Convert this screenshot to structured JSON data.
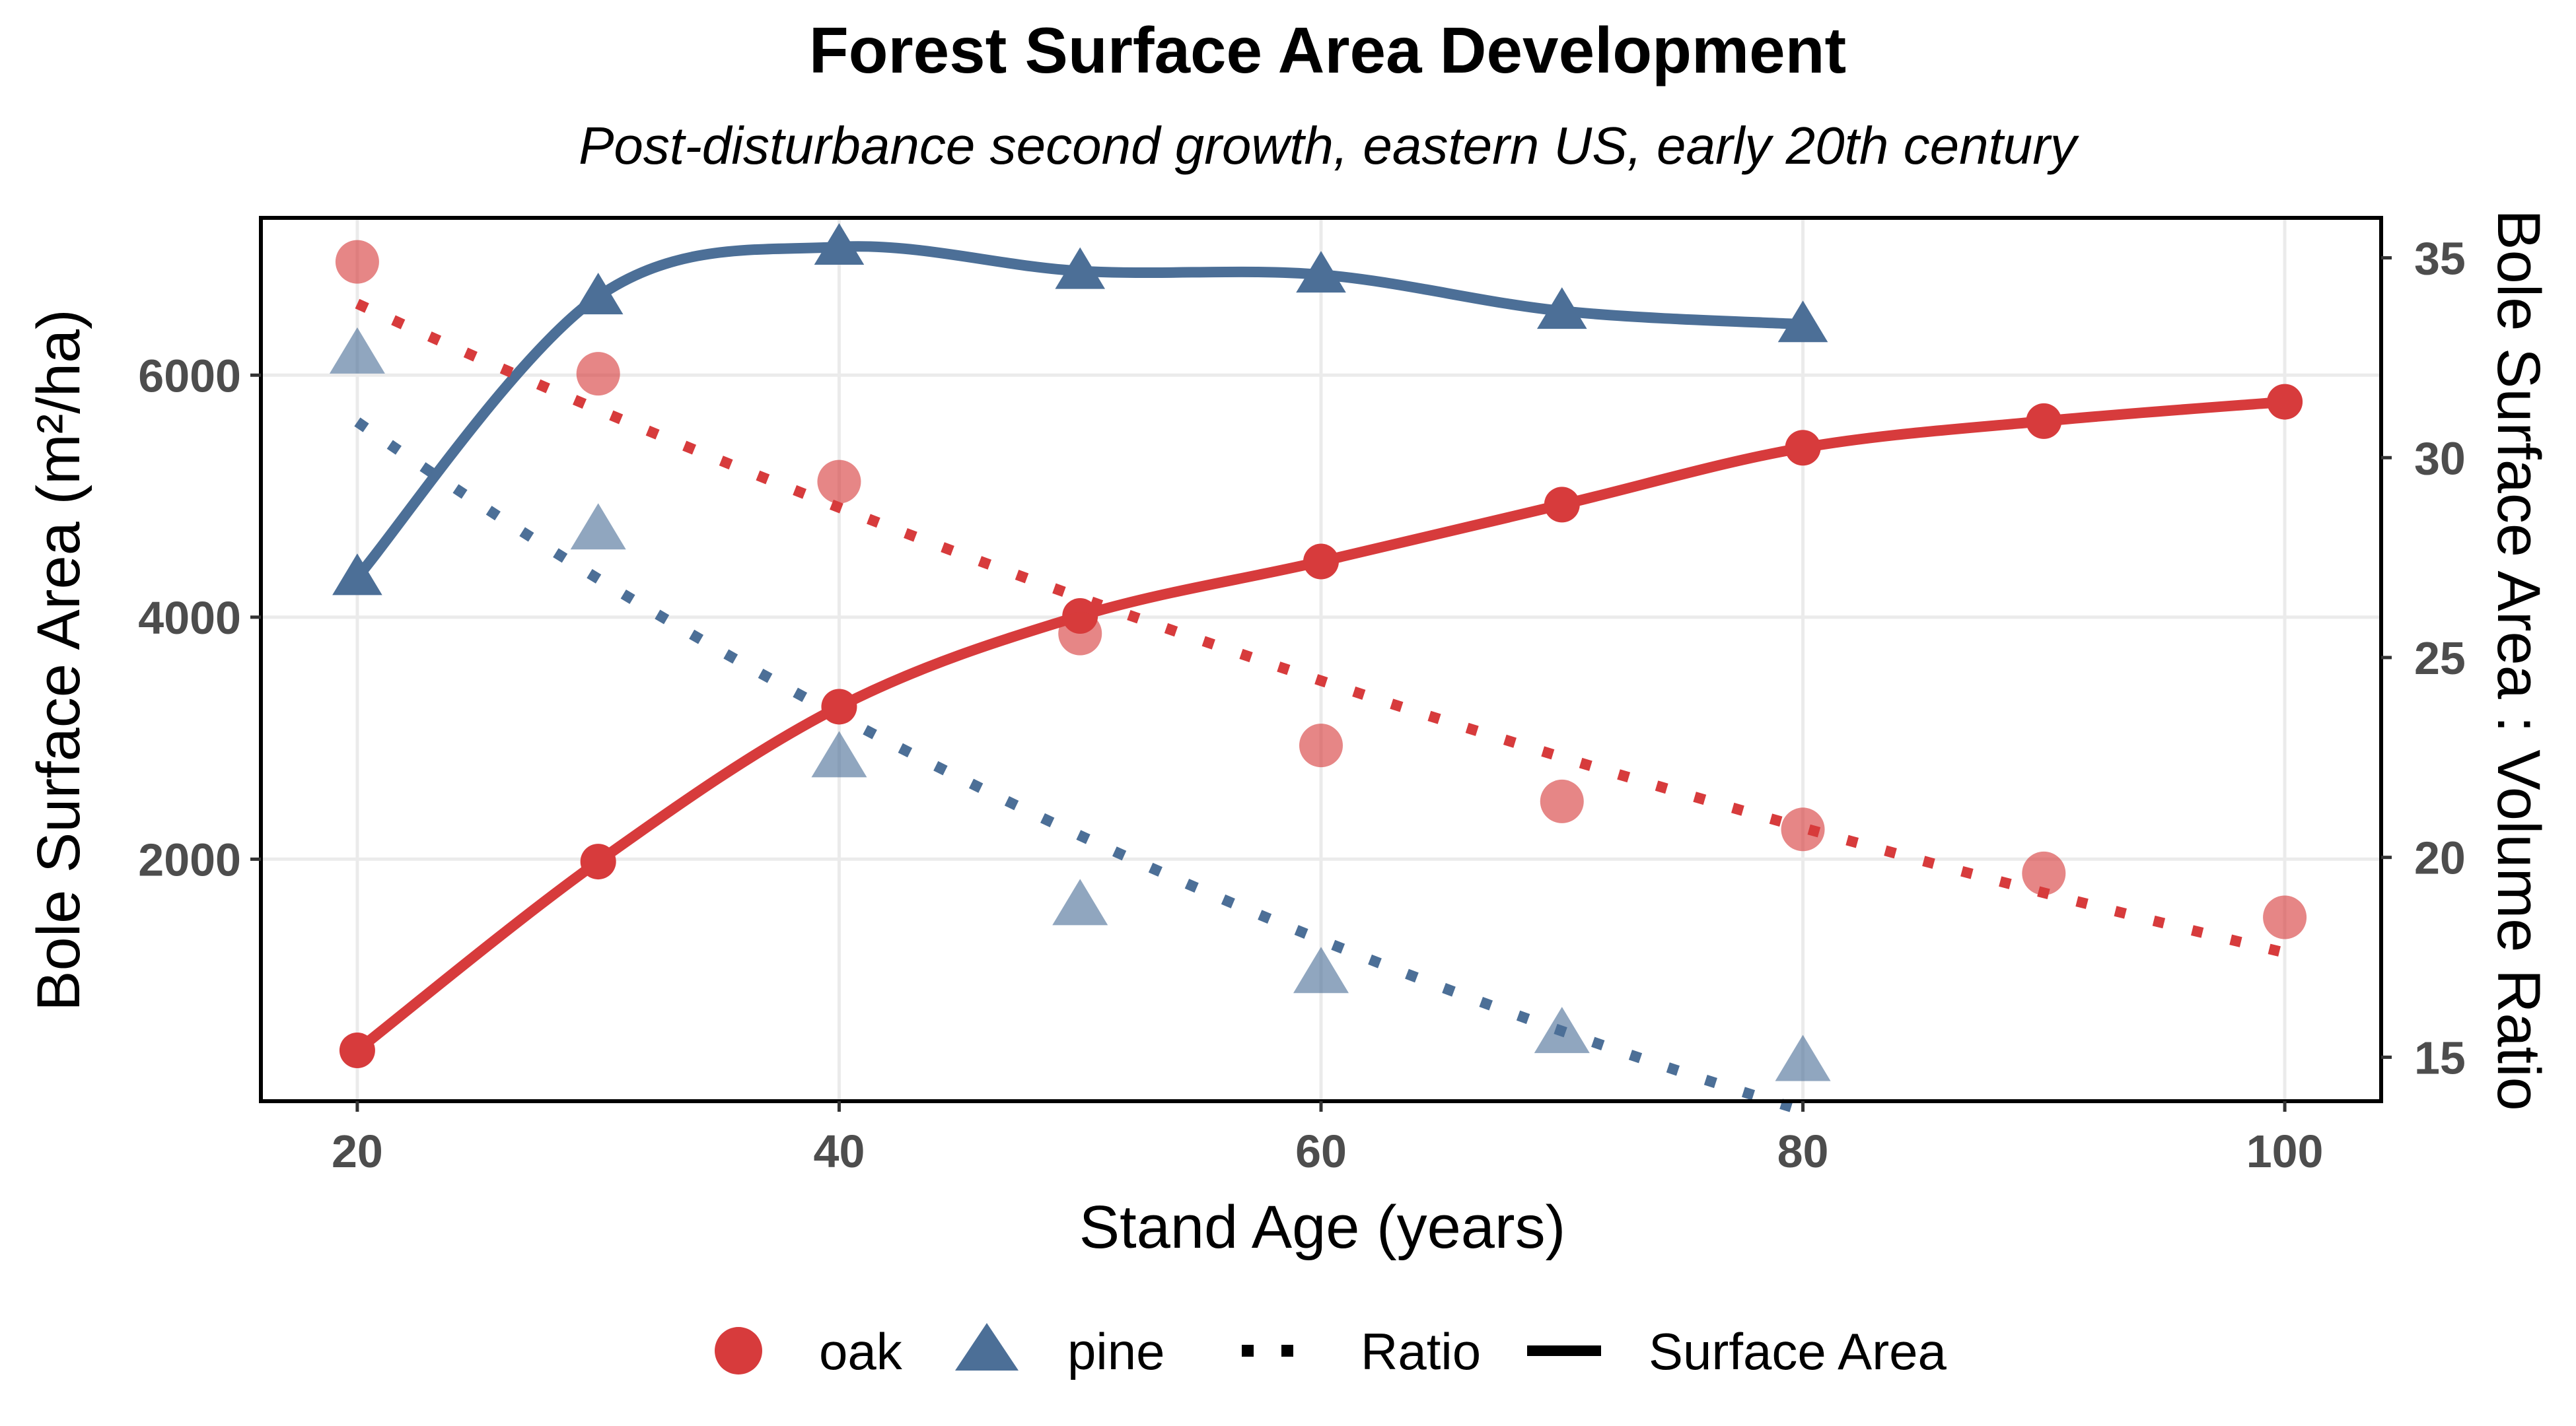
{
  "chart_data": {
    "type": "line",
    "title": "Forest Surface Area Development",
    "subtitle": "Post-disturbance second growth, eastern US, early 20th century",
    "xlabel": "Stand Age (years)",
    "ylabel": "Bole Surface Area (m²/ha)",
    "ylabel_right": "Bole Surface Area : Volume Ratio",
    "xlim": [
      16,
      104
    ],
    "ylim": [
      0,
      7300
    ],
    "ylim_right": [
      13.9,
      36.0
    ],
    "x_ticks": [
      20,
      40,
      60,
      80,
      100
    ],
    "y_ticks": [
      2000,
      4000,
      6000
    ],
    "y_ticks_right": [
      15,
      20,
      25,
      30,
      35
    ],
    "grid": true,
    "legend_position": "bottom",
    "legend": {
      "oak": "oak",
      "pine": "pine",
      "ratio": "Ratio",
      "surface_area": "Surface Area"
    },
    "colors": {
      "oak": "#d73b3c",
      "pine": "#4c6f97"
    },
    "series": [
      {
        "name": "oak",
        "measure": "Surface Area",
        "axis": "left",
        "marker": "circle",
        "line": "solid",
        "x": [
          20,
          30,
          40,
          50,
          60,
          70,
          80,
          90,
          100
        ],
        "y": [
          420,
          1980,
          3260,
          4010,
          4460,
          4930,
          5400,
          5620,
          5780
        ]
      },
      {
        "name": "pine",
        "measure": "Surface Area",
        "axis": "left",
        "marker": "triangle",
        "line": "solid",
        "x": [
          20,
          30,
          40,
          50,
          60,
          70,
          80
        ],
        "y": [
          4330,
          6650,
          7060,
          6860,
          6830,
          6530,
          6420
        ]
      },
      {
        "name": "oak",
        "measure": "Ratio",
        "axis": "right",
        "marker": "circle",
        "line": "dotted",
        "x": [
          20,
          30,
          40,
          50,
          60,
          70,
          80,
          90,
          100
        ],
        "y": [
          34.9,
          32.1,
          29.4,
          25.6,
          22.8,
          21.4,
          20.7,
          19.6,
          18.5
        ]
      },
      {
        "name": "pine",
        "measure": "Ratio",
        "axis": "right",
        "marker": "triangle",
        "line": "dotted",
        "x": [
          20,
          30,
          40,
          50,
          60,
          70,
          80
        ],
        "y": [
          32.6,
          28.2,
          22.5,
          18.8,
          17.1,
          15.6,
          14.9
        ]
      }
    ]
  }
}
